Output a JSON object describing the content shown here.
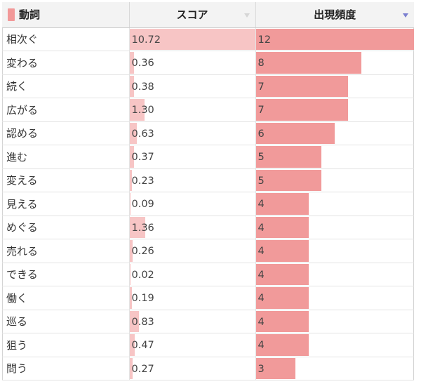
{
  "header": {
    "verb_label": "動詞",
    "score_label": "スコア",
    "freq_label": "出現頻度"
  },
  "colors": {
    "legend": "#f29999",
    "score_bar": "#f7c5c5",
    "freq_bar": "#f19a9a",
    "sort_active": "#7b7fd0"
  },
  "sort": {
    "column": "出現頻度",
    "direction": "descending"
  },
  "max_score": 10.72,
  "max_freq": 12,
  "rows": [
    {
      "verb": "相次ぐ",
      "score": "10.72",
      "freq": "12"
    },
    {
      "verb": "変わる",
      "score": "0.36",
      "freq": "8"
    },
    {
      "verb": "続く",
      "score": "0.38",
      "freq": "7"
    },
    {
      "verb": "広がる",
      "score": "1.30",
      "freq": "7"
    },
    {
      "verb": "認める",
      "score": "0.63",
      "freq": "6"
    },
    {
      "verb": "進む",
      "score": "0.37",
      "freq": "5"
    },
    {
      "verb": "変える",
      "score": "0.23",
      "freq": "5"
    },
    {
      "verb": "見える",
      "score": "0.09",
      "freq": "4"
    },
    {
      "verb": "めぐる",
      "score": "1.36",
      "freq": "4"
    },
    {
      "verb": "売れる",
      "score": "0.26",
      "freq": "4"
    },
    {
      "verb": "できる",
      "score": "0.02",
      "freq": "4"
    },
    {
      "verb": "働く",
      "score": "0.19",
      "freq": "4"
    },
    {
      "verb": "巡る",
      "score": "0.83",
      "freq": "4"
    },
    {
      "verb": "狙う",
      "score": "0.47",
      "freq": "4"
    },
    {
      "verb": "問う",
      "score": "0.27",
      "freq": "3"
    }
  ]
}
